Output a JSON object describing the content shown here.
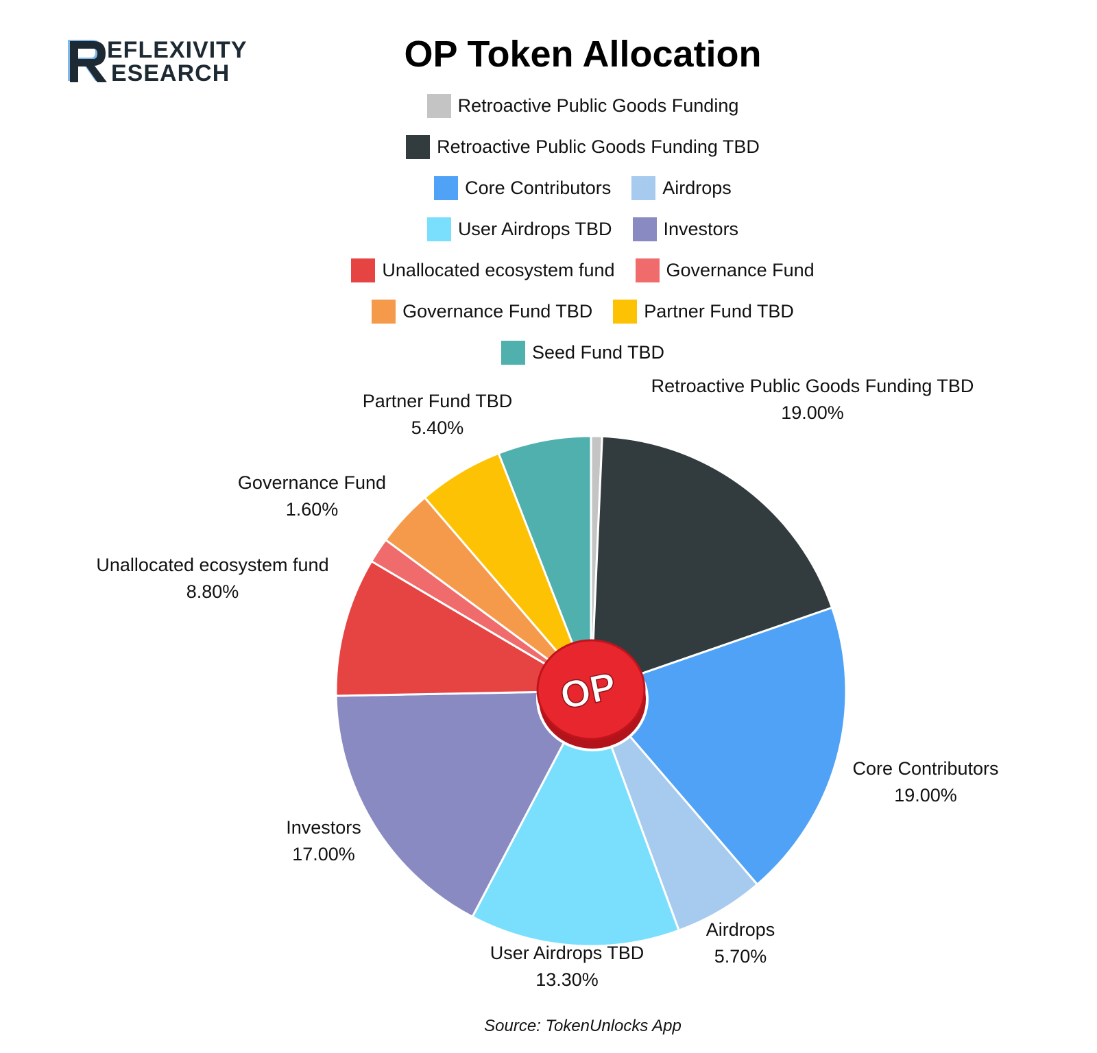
{
  "logo": {
    "text_line1": "EFLEXIVITY",
    "text_line2": "ESEARCH",
    "letter": "R"
  },
  "title": "OP Token Allocation",
  "source": "Source: TokenUnlocks App",
  "center_badge": "OP",
  "colors": {
    "Retroactive Public Goods Funding": "#c4c4c4",
    "Retroactive Public Goods Funding TBD": "#323b3d",
    "Core Contributors": "#4fa2f6",
    "Airdrops": "#a6cbee",
    "User Airdrops TBD": "#7adffc",
    "Investors": "#8a8ac2",
    "Unallocated ecosystem fund": "#e64343",
    "Governance Fund": "#f06b6b",
    "Governance Fund TBD": "#f59a4b",
    "Partner Fund TBD": "#fcc203",
    "Seed Fund TBD": "#4fb0ad",
    "badge": "#e8262e"
  },
  "legend_rows": [
    [
      "Retroactive Public Goods Funding"
    ],
    [
      "Retroactive Public Goods Funding TBD"
    ],
    [
      "Core Contributors",
      "Airdrops"
    ],
    [
      "User Airdrops TBD",
      "Investors"
    ],
    [
      "Unallocated ecosystem fund",
      "Governance Fund"
    ],
    [
      "Governance Fund TBD",
      "Partner Fund TBD"
    ],
    [
      "Seed Fund TBD"
    ]
  ],
  "chart_data": {
    "type": "pie",
    "title": "OP Token Allocation",
    "unit": "%",
    "start": "12 o'clock, clockwise",
    "slices": [
      {
        "label": "Retroactive Public Goods Funding",
        "value": 0.7,
        "value_label": ""
      },
      {
        "label": "Retroactive Public Goods Funding TBD",
        "value": 19.0,
        "value_label": "19.00%"
      },
      {
        "label": "Core Contributors",
        "value": 19.0,
        "value_label": "19.00%"
      },
      {
        "label": "Airdrops",
        "value": 5.7,
        "value_label": "5.70%"
      },
      {
        "label": "User Airdrops TBD",
        "value": 13.3,
        "value_label": "13.30%"
      },
      {
        "label": "Investors",
        "value": 17.0,
        "value_label": "17.00%"
      },
      {
        "label": "Unallocated ecosystem fund",
        "value": 8.8,
        "value_label": "8.80%"
      },
      {
        "label": "Governance Fund",
        "value": 1.6,
        "value_label": "1.60%"
      },
      {
        "label": "Governance Fund TBD",
        "value": 3.6,
        "value_label": ""
      },
      {
        "label": "Partner Fund TBD",
        "value": 5.4,
        "value_label": "5.40%"
      },
      {
        "label": "Seed Fund TBD",
        "value": 5.9,
        "value_label": ""
      }
    ]
  }
}
